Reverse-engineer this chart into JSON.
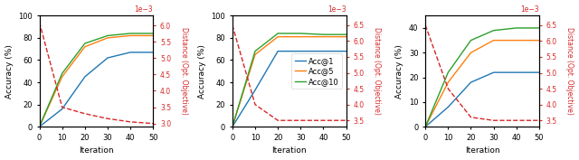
{
  "iterations": [
    0,
    10,
    20,
    30,
    40,
    50
  ],
  "subplot1": {
    "acc1": [
      0,
      16,
      45,
      62,
      67,
      67
    ],
    "acc5": [
      0,
      45,
      72,
      80,
      82,
      82
    ],
    "acc10": [
      0,
      48,
      75,
      82,
      84,
      84
    ],
    "dist": [
      0.0061,
      0.0035,
      0.0033,
      0.00315,
      0.00305,
      0.003
    ],
    "ylim_acc": [
      0,
      100
    ],
    "ylim_dist": [
      0.0029,
      0.0063
    ],
    "yticks_dist": [
      0.003,
      0.0035,
      0.004,
      0.0045,
      0.005,
      0.0055,
      0.006
    ]
  },
  "subplot2": {
    "acc1": [
      0,
      33,
      68,
      68,
      68,
      68
    ],
    "acc5": [
      0,
      65,
      81,
      81,
      81,
      81
    ],
    "acc10": [
      0,
      68,
      84,
      84,
      83,
      83
    ],
    "dist": [
      0.0065,
      0.004,
      0.0035,
      0.0035,
      0.0035,
      0.0035
    ],
    "ylim_acc": [
      0,
      100
    ],
    "ylim_dist": [
      0.0033,
      0.0068
    ],
    "yticks_dist": [
      0.0035,
      0.004,
      0.0045,
      0.005,
      0.0055,
      0.006,
      0.0065
    ]
  },
  "subplot3": {
    "acc1": [
      0,
      8,
      18,
      22,
      22,
      22
    ],
    "acc5": [
      0,
      18,
      30,
      35,
      35,
      35
    ],
    "acc10": [
      0,
      22,
      35,
      39,
      40,
      40
    ],
    "dist": [
      0.0065,
      0.0045,
      0.0036,
      0.0035,
      0.0035,
      0.0035
    ],
    "ylim_acc": [
      0,
      45
    ],
    "ylim_dist": [
      0.0033,
      0.0068
    ],
    "yticks_dist": [
      0.0035,
      0.004,
      0.0045,
      0.005,
      0.0055,
      0.006,
      0.0065
    ]
  },
  "colors": {
    "acc1": "#1f77b4",
    "acc5": "#ff7f0e",
    "acc10": "#2ca02c",
    "dist": "#d62728"
  },
  "legend_labels": [
    "Acc@1",
    "Acc@5",
    "Acc@10"
  ],
  "xlabel": "Iteration",
  "ylabel_left": "Accuracy (%)",
  "ylabel_right": "Distance (Opt. Objective)"
}
